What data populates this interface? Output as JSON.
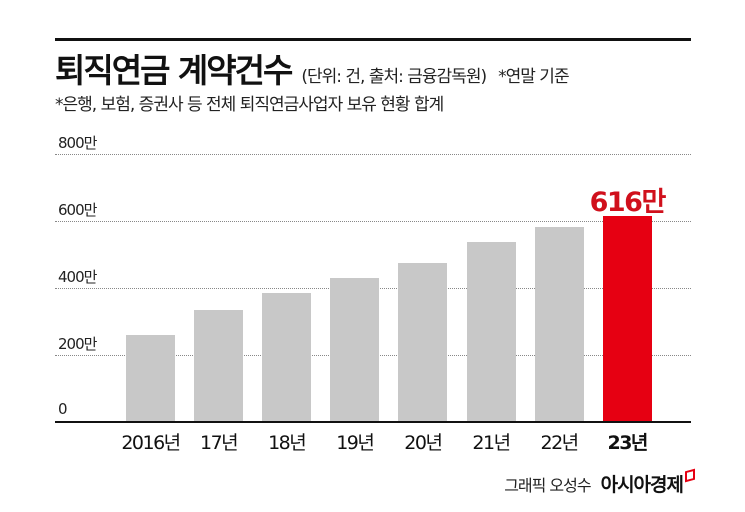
{
  "header": {
    "title": "퇴직연금 계약건수",
    "note": "(단위: 건, 출처: 금융감독원)",
    "basis": "*연말 기준",
    "subtitle": "*은행, 보험, 증권사 등 전체 퇴직연금사업자 보유 현황 합계"
  },
  "colors": {
    "bar_default": "#c8c8c8",
    "bar_highlight": "#e60012",
    "label_highlight": "#d0101c",
    "axis": "#111111"
  },
  "highlight_label": "616만",
  "footer": {
    "credit": "그래픽 오성수",
    "brand": "아시아경제"
  },
  "chart_data": {
    "type": "bar",
    "title": "퇴직연금 계약건수",
    "subtitle": "*은행, 보험, 증권사 등 전체 퇴직연금사업자 보유 현황 합계",
    "unit_note": "(단위: 건, 출처: 금융감독원) *연말 기준",
    "categories": [
      "2016년",
      "17년",
      "18년",
      "19년",
      "20년",
      "21년",
      "22년",
      "23년"
    ],
    "values": [
      260,
      334,
      385,
      430,
      475,
      537,
      582,
      616
    ],
    "value_unit": "만 건",
    "annotations": [
      {
        "category": "23년",
        "label": "616만",
        "highlight": true
      }
    ],
    "yticks": [
      0,
      200,
      400,
      600,
      800
    ],
    "ytick_labels": [
      "0",
      "200만",
      "400만",
      "600만",
      "800만"
    ],
    "xlabel": "",
    "ylabel": "",
    "ylim": [
      0,
      800
    ],
    "grid": true,
    "legend": null
  }
}
